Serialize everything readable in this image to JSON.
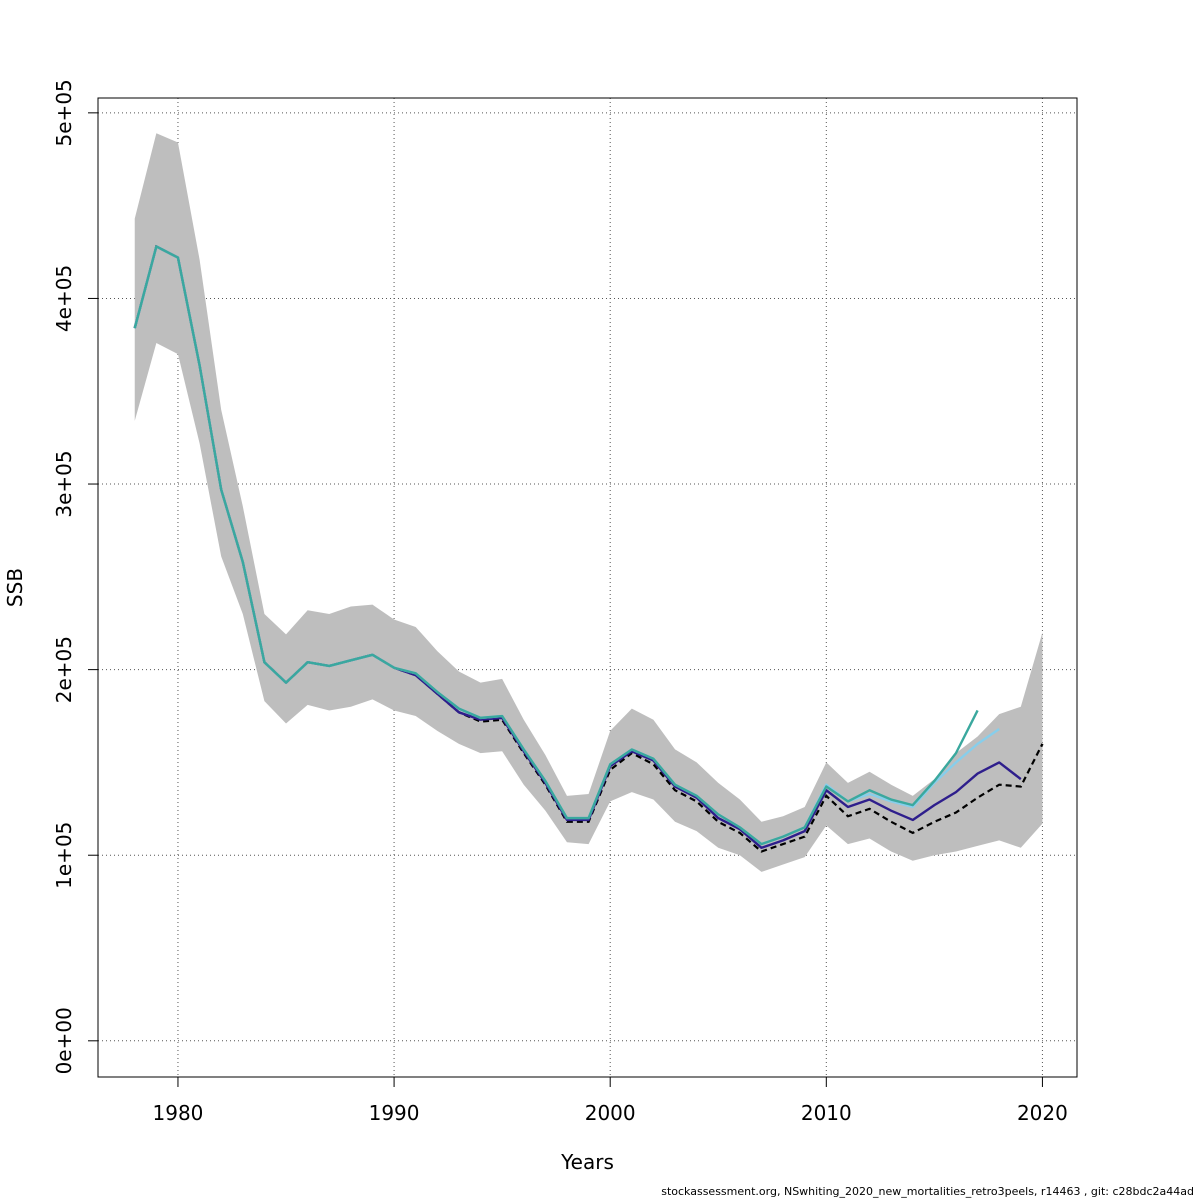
{
  "chart_data": {
    "type": "line",
    "xlabel": "Years",
    "ylabel": "SSB",
    "xlim": [
      1976.3,
      2021.6
    ],
    "ylim": [
      -19500,
      508000
    ],
    "x_ticks": [
      1980,
      1990,
      2000,
      2010,
      2020
    ],
    "x_tick_labels": [
      "1980",
      "1990",
      "2000",
      "2010",
      "2020"
    ],
    "y_ticks": [
      0,
      100000,
      200000,
      300000,
      400000,
      500000
    ],
    "y_tick_labels": [
      "0e+00",
      "1e+05",
      "2e+05",
      "3e+05",
      "4e+05",
      "5e+05"
    ],
    "grid": true,
    "confidence_band": {
      "color": "#bebebe",
      "x": [
        1978,
        1979,
        1980,
        1981,
        1982,
        1983,
        1984,
        1985,
        1986,
        1987,
        1988,
        1989,
        1990,
        1991,
        1992,
        1993,
        1994,
        1995,
        1996,
        1997,
        1998,
        1999,
        2000,
        2001,
        2002,
        2003,
        2004,
        2005,
        2006,
        2007,
        2008,
        2009,
        2010,
        2011,
        2012,
        2013,
        2014,
        2015,
        2016,
        2017,
        2018,
        2019,
        2020
      ],
      "lower": [
        334000,
        376000,
        370000,
        322000,
        261000,
        230000,
        183000,
        171000,
        181000,
        178000,
        180000,
        184000,
        178000,
        175000,
        167000,
        160000,
        155000,
        156000,
        138000,
        124000,
        107000,
        106000,
        129000,
        134000,
        130000,
        118000,
        113000,
        104000,
        100000,
        91000,
        95000,
        99000,
        116000,
        106000,
        109000,
        102000,
        97000,
        100000,
        102000,
        105000,
        108000,
        104000,
        117000
      ],
      "upper": [
        443000,
        489000,
        484000,
        421000,
        340000,
        288000,
        230000,
        219000,
        232000,
        230000,
        234000,
        235000,
        227000,
        223000,
        210000,
        199000,
        193000,
        195000,
        173000,
        154000,
        132000,
        133000,
        167000,
        179000,
        173000,
        157000,
        150000,
        139000,
        130000,
        118000,
        121000,
        126000,
        150000,
        139000,
        145000,
        138000,
        132000,
        141000,
        155000,
        164000,
        176000,
        180000,
        220000
      ]
    },
    "series": [
      {
        "color": "#000000",
        "dashed": true,
        "x": [
          1978,
          1979,
          1980,
          1981,
          1982,
          1983,
          1984,
          1985,
          1986,
          1987,
          1988,
          1989,
          1990,
          1991,
          1992,
          1993,
          1994,
          1995,
          1996,
          1997,
          1998,
          1999,
          2000,
          2001,
          2002,
          2003,
          2004,
          2005,
          2006,
          2007,
          2008,
          2009,
          2010,
          2011,
          2012,
          2013,
          2014,
          2015,
          2016,
          2017,
          2018,
          2019,
          2020
        ],
        "values": [
          384000,
          428000,
          422000,
          364000,
          297000,
          258000,
          204000,
          193000,
          204000,
          202000,
          205000,
          208000,
          201000,
          197000,
          187000,
          177000,
          172000,
          173000,
          155000,
          138000,
          118000,
          118000,
          146000,
          155000,
          149000,
          135000,
          129000,
          118000,
          112000,
          102000,
          106000,
          110000,
          132000,
          121000,
          125000,
          118000,
          112000,
          118000,
          123000,
          131000,
          138000,
          137000,
          160000
        ]
      },
      {
        "color": "#2e1e8c",
        "dashed": false,
        "x": [
          1978,
          1979,
          1980,
          1981,
          1982,
          1983,
          1984,
          1985,
          1986,
          1987,
          1988,
          1989,
          1990,
          1991,
          1992,
          1993,
          1994,
          1995,
          1996,
          1997,
          1998,
          1999,
          2000,
          2001,
          2002,
          2003,
          2004,
          2005,
          2006,
          2007,
          2008,
          2009,
          2010,
          2011,
          2012,
          2013,
          2014,
          2015,
          2016,
          2017,
          2018,
          2019
        ],
        "values": [
          384000,
          428000,
          422000,
          364000,
          297000,
          258000,
          204000,
          193000,
          204000,
          202000,
          205000,
          208000,
          201000,
          197000,
          187000,
          177000,
          173000,
          174000,
          156000,
          139000,
          119000,
          119000,
          148000,
          156000,
          151000,
          137000,
          131000,
          120000,
          114000,
          104000,
          108000,
          113000,
          135000,
          126000,
          130000,
          124000,
          119000,
          127000,
          134000,
          144000,
          150000,
          141000
        ]
      },
      {
        "color": "#87ceeb",
        "dashed": false,
        "x": [
          1978,
          1979,
          1980,
          1981,
          1982,
          1983,
          1984,
          1985,
          1986,
          1987,
          1988,
          1989,
          1990,
          1991,
          1992,
          1993,
          1994,
          1995,
          1996,
          1997,
          1998,
          1999,
          2000,
          2001,
          2002,
          2003,
          2004,
          2005,
          2006,
          2007,
          2008,
          2009,
          2010,
          2011,
          2012,
          2013,
          2014,
          2015,
          2016,
          2017,
          2018
        ],
        "values": [
          384000,
          428000,
          422000,
          364000,
          297000,
          258000,
          204000,
          193000,
          204000,
          202000,
          205000,
          208000,
          201000,
          198000,
          188000,
          179000,
          174000,
          175000,
          157000,
          140000,
          120000,
          120000,
          149000,
          157000,
          152000,
          138000,
          132000,
          122000,
          115000,
          106000,
          110000,
          115000,
          138000,
          129000,
          133000,
          129000,
          126000,
          139000,
          150000,
          160000,
          168000
        ]
      },
      {
        "color": "#3aa89e",
        "dashed": false,
        "x": [
          1978,
          1979,
          1980,
          1981,
          1982,
          1983,
          1984,
          1985,
          1986,
          1987,
          1988,
          1989,
          1990,
          1991,
          1992,
          1993,
          1994,
          1995,
          1996,
          1997,
          1998,
          1999,
          2000,
          2001,
          2002,
          2003,
          2004,
          2005,
          2006,
          2007,
          2008,
          2009,
          2010,
          2011,
          2012,
          2013,
          2014,
          2015,
          2016,
          2017
        ],
        "values": [
          384000,
          428000,
          422000,
          364000,
          297000,
          258000,
          204000,
          193000,
          204000,
          202000,
          205000,
          208000,
          201000,
          198000,
          188000,
          179000,
          174000,
          175000,
          157000,
          140000,
          120000,
          120000,
          149000,
          157000,
          152000,
          138000,
          132000,
          122000,
          115000,
          106000,
          110000,
          115000,
          137000,
          129000,
          135000,
          130000,
          127000,
          140000,
          155000,
          178000
        ]
      }
    ]
  },
  "footer": {
    "text": "stockassessment.org, NSwhiting_2020_new_mortalities_retro3peels, r14463 , git: c28bdc2a44ad"
  }
}
